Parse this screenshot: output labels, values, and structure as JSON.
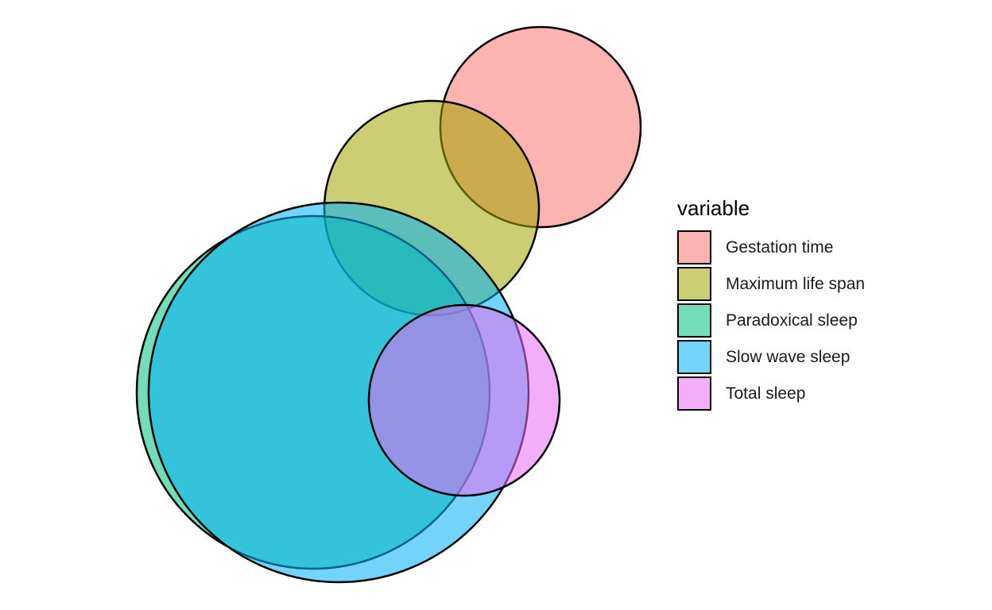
{
  "legend": {
    "title": "variable",
    "items": [
      {
        "key": "gestation_time",
        "label": "Gestation time",
        "color": "#F8766D"
      },
      {
        "key": "maximum_life_span",
        "label": "Maximum life span",
        "color": "#A3A500"
      },
      {
        "key": "paradoxical_sleep",
        "label": "Paradoxical sleep",
        "color": "#00BF7D"
      },
      {
        "key": "slow_wave_sleep",
        "label": "Slow wave sleep",
        "color": "#00B0F6"
      },
      {
        "key": "total_sleep",
        "label": "Total sleep",
        "color": "#E76BF3"
      }
    ]
  },
  "style": {
    "fill_opacity": 0.55,
    "stroke_color": "#000000"
  }
}
